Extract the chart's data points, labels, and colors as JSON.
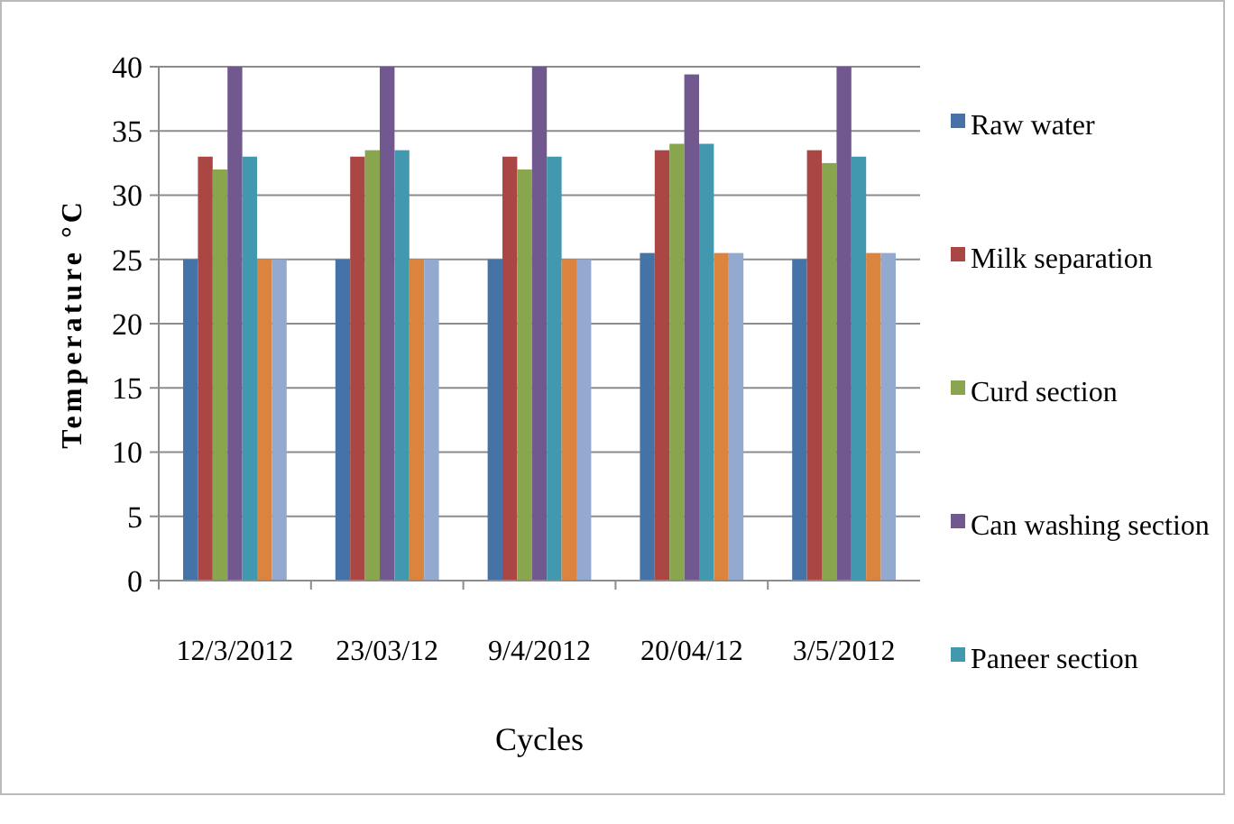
{
  "chart_data": {
    "type": "bar",
    "xlabel": "Cycles",
    "ylabel": "Temperature °C",
    "categories": [
      "12/3/2012",
      "23/03/12",
      "9/4/2012",
      "20/04/12",
      "3/5/2012"
    ],
    "series": [
      {
        "name": "Raw water",
        "color": "#4572a7",
        "values": [
          25,
          25,
          25,
          25.5,
          25
        ]
      },
      {
        "name": "Milk separation",
        "color": "#aa4643",
        "values": [
          33,
          33,
          33,
          33.5,
          33.5
        ]
      },
      {
        "name": "Curd section",
        "color": "#89a54e",
        "values": [
          32,
          33.5,
          32,
          34,
          32.5
        ]
      },
      {
        "name": "Can washing section",
        "color": "#71588f",
        "values": [
          40,
          40,
          40,
          39.4,
          40
        ]
      },
      {
        "name": "Paneer section",
        "color": "#4198af",
        "values": [
          33,
          33.5,
          33,
          34,
          33
        ]
      },
      {
        "color": "#db843d",
        "values": [
          25,
          25,
          25,
          25.5,
          25.5
        ]
      },
      {
        "color": "#93a9cf",
        "values": [
          25,
          25,
          25,
          25.5,
          25.5
        ]
      }
    ],
    "ylim": [
      0,
      40
    ],
    "yticks": [
      0,
      5,
      10,
      15,
      20,
      25,
      30,
      35,
      40
    ],
    "grid": "y",
    "legend": "right"
  }
}
